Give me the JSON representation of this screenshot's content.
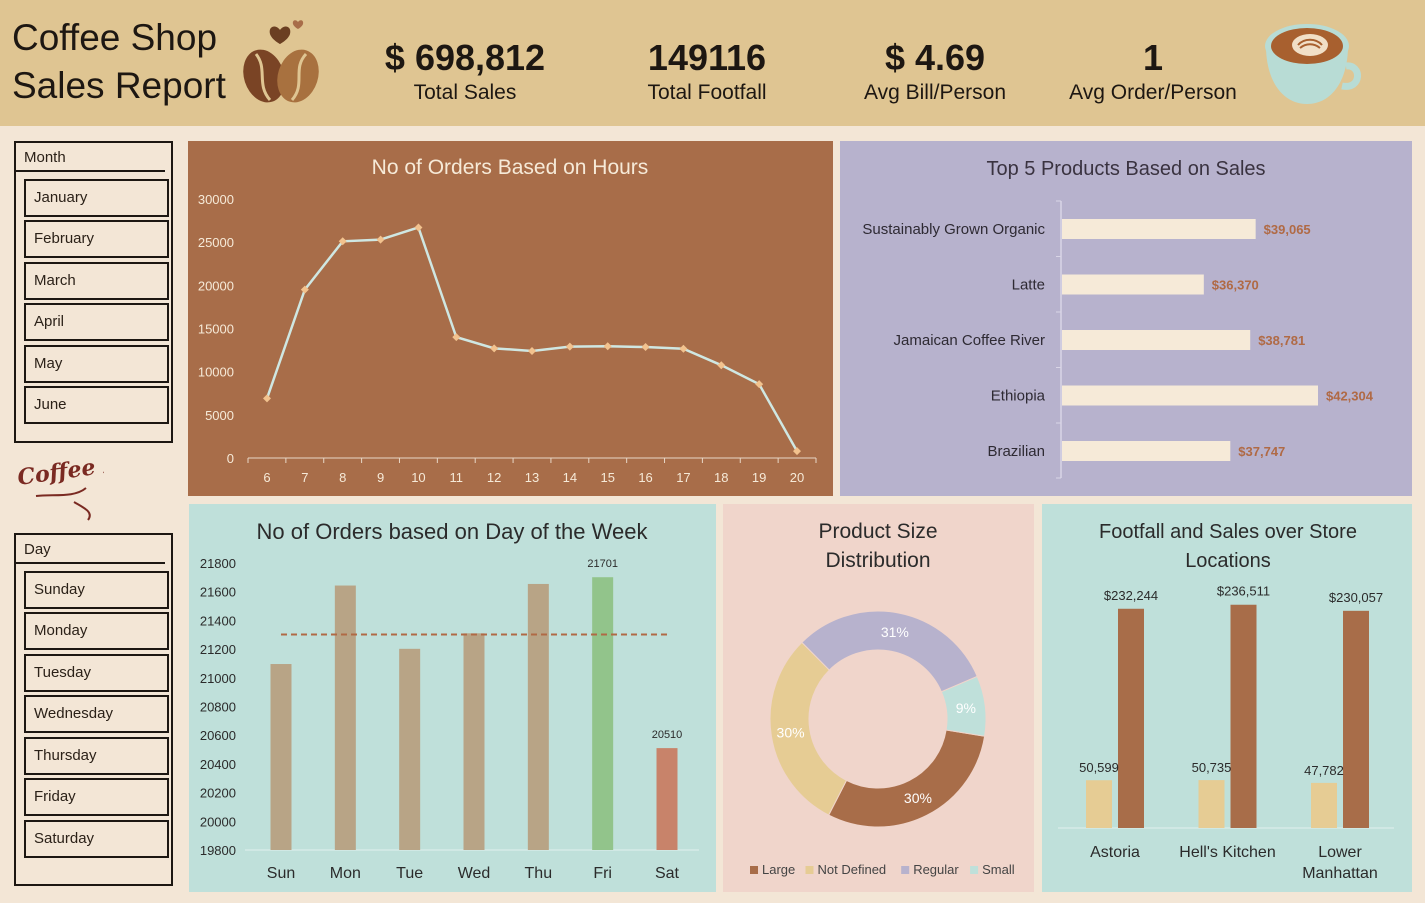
{
  "header": {
    "title_line1": "Coffee Shop",
    "title_line2": "Sales Report",
    "kpis": [
      {
        "value": "$ 698,812",
        "label": "Total Sales"
      },
      {
        "value": "149116",
        "label": "Total Footfall"
      },
      {
        "value": "$ 4.69",
        "label": "Avg Bill/Person"
      },
      {
        "value": "1",
        "label": "Avg Order/Person"
      }
    ]
  },
  "slicers": {
    "month": {
      "title": "Month",
      "items": [
        "January",
        "February",
        "March",
        "April",
        "May",
        "June"
      ]
    },
    "day": {
      "title": "Day",
      "items": [
        "Sunday",
        "Monday",
        "Tuesday",
        "Wednesday",
        "Thursday",
        "Friday",
        "Saturday"
      ]
    },
    "logo_text": "Coffee Day"
  },
  "colors": {
    "header_bg": "#dfc592",
    "page_bg": "#f3e6d6",
    "hours_panel": "#a86d49",
    "products_panel": "#b7b2cd",
    "week_panel": "#bfe0da",
    "size_panel": "#f0d5cb",
    "stores_panel": "#bfe0da",
    "brown": "#a86d49",
    "tan": "#dfc592",
    "lavender": "#b7b2cd",
    "mint": "#bfe0da"
  },
  "chart_data": [
    {
      "type": "line",
      "title": "No of Orders Based on Hours",
      "x": [
        6,
        7,
        8,
        9,
        10,
        11,
        12,
        13,
        14,
        15,
        16,
        17,
        18,
        19,
        20
      ],
      "values": [
        6900,
        19500,
        25100,
        25300,
        26700,
        14000,
        12700,
        12400,
        12900,
        12950,
        12850,
        12650,
        10750,
        8550,
        800
      ],
      "ylim": [
        0,
        30000
      ],
      "yticks": [
        0,
        5000,
        10000,
        15000,
        20000,
        25000,
        30000
      ]
    },
    {
      "type": "bar",
      "orientation": "horizontal",
      "title": "Top 5 Products Based on Sales",
      "categories": [
        "Sustainably Grown Organic",
        "Latte",
        "Jamaican Coffee River",
        "Ethiopia",
        "Brazilian"
      ],
      "values": [
        39065,
        36370,
        38781,
        42304,
        37747
      ],
      "value_labels": [
        "$39,065",
        "$36,370",
        "$38,781",
        "$42,304",
        "$37,747"
      ],
      "xlim": [
        29000,
        43500
      ]
    },
    {
      "type": "bar",
      "title": "No of Orders based on Day of the Week",
      "categories": [
        "Sun",
        "Mon",
        "Tue",
        "Wed",
        "Thu",
        "Fri",
        "Sat"
      ],
      "values": [
        21096,
        21643,
        21202,
        21310,
        21654,
        21701,
        20510
      ],
      "bar_colors": [
        "#b8a486",
        "#b8a486",
        "#b8a486",
        "#b8a486",
        "#b8a486",
        "#92c48b",
        "#c8836a"
      ],
      "data_labels": {
        "Fri": "21701",
        "Sat": "20510"
      },
      "average": 21302,
      "ylim": [
        19800,
        21800
      ],
      "yticks": [
        19800,
        20000,
        20200,
        20400,
        20600,
        20800,
        21000,
        21200,
        21400,
        21600,
        21800
      ]
    },
    {
      "type": "pie",
      "donut": true,
      "title": "Product Size Distribution",
      "labels": [
        "Large",
        "Not Defined",
        "Regular",
        "Small"
      ],
      "values": [
        30,
        30,
        31,
        9
      ],
      "display_labels": [
        "30%",
        "30%",
        "31%",
        "9%"
      ],
      "colors": [
        "#a86d49",
        "#e6cc94",
        "#b7b2cd",
        "#bfe0da"
      ],
      "legend": "bottom"
    },
    {
      "type": "bar",
      "title": "Footfall and Sales over Store Locations",
      "categories": [
        "Astoria",
        "Hell's Kitchen",
        "Lower Manhattan"
      ],
      "series": [
        {
          "name": "Footfall",
          "values": [
            50599,
            50735,
            47782
          ],
          "labels": [
            "50,599",
            "50,735",
            "47,782"
          ],
          "color": "#e6cc94"
        },
        {
          "name": "Sales",
          "values": [
            232244,
            236511,
            230057
          ],
          "labels": [
            "$232,244",
            "$236,511",
            "$230,057"
          ],
          "color": "#a86d49"
        }
      ]
    }
  ]
}
